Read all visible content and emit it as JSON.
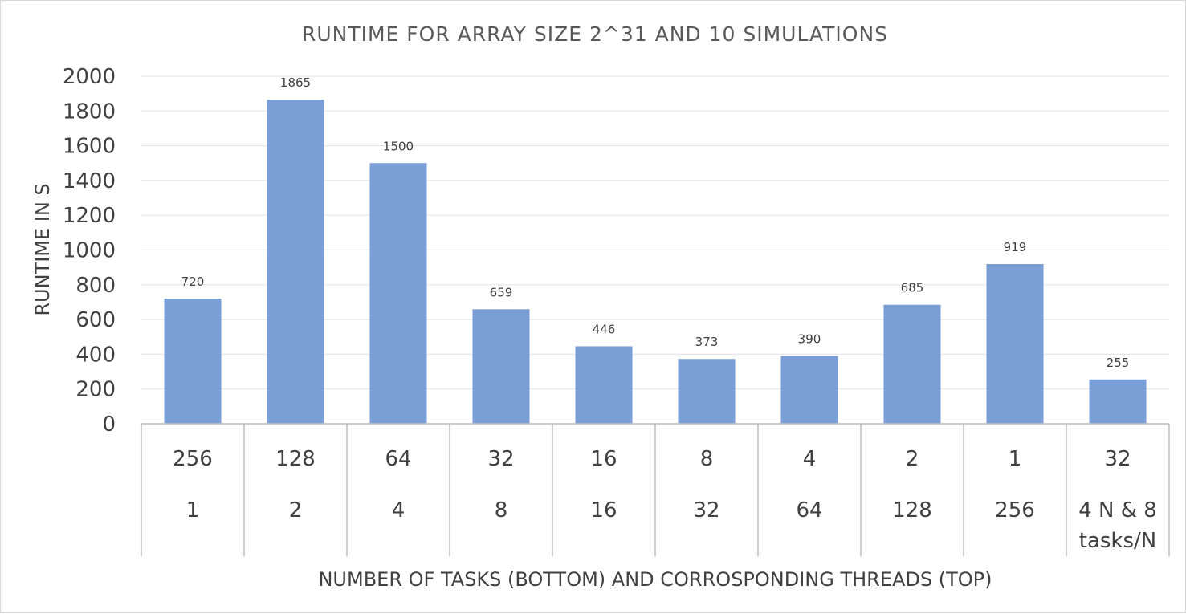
{
  "chart_data": {
    "type": "bar",
    "title": "RUNTIME FOR ARRAY SIZE 2^31 AND 10 SIMULATIONS",
    "ylabel": "RUNTIME IN S",
    "xlabel": "NUMBER OF TASKS (BOTTOM) AND CORROSPONDING THREADS (TOP)",
    "ylim": [
      0,
      2000
    ],
    "yticks": [
      "0",
      "200",
      "400",
      "600",
      "800",
      "1000",
      "1200",
      "1400",
      "1600",
      "1800",
      "2000"
    ],
    "grid": true,
    "categories": [
      {
        "top": "256",
        "bottom": [
          "1"
        ]
      },
      {
        "top": "128",
        "bottom": [
          "2"
        ]
      },
      {
        "top": "64",
        "bottom": [
          "4"
        ]
      },
      {
        "top": "32",
        "bottom": [
          "8"
        ]
      },
      {
        "top": "16",
        "bottom": [
          "16"
        ]
      },
      {
        "top": "8",
        "bottom": [
          "32"
        ]
      },
      {
        "top": "4",
        "bottom": [
          "64"
        ]
      },
      {
        "top": "2",
        "bottom": [
          "128"
        ]
      },
      {
        "top": "1",
        "bottom": [
          "256"
        ]
      },
      {
        "top": "32",
        "bottom": [
          "4 N & 8",
          "tasks/N"
        ]
      }
    ],
    "values": [
      720,
      1865,
      1500,
      659,
      446,
      373,
      390,
      685,
      919,
      255
    ],
    "data_labels": [
      "720",
      "1865",
      "1500",
      "659",
      "446",
      "373",
      "390",
      "685",
      "919",
      "255"
    ],
    "bar_color": "#7a9fd6",
    "grid_color": "#e6e6e6",
    "axis_color": "#bfbfbf"
  }
}
